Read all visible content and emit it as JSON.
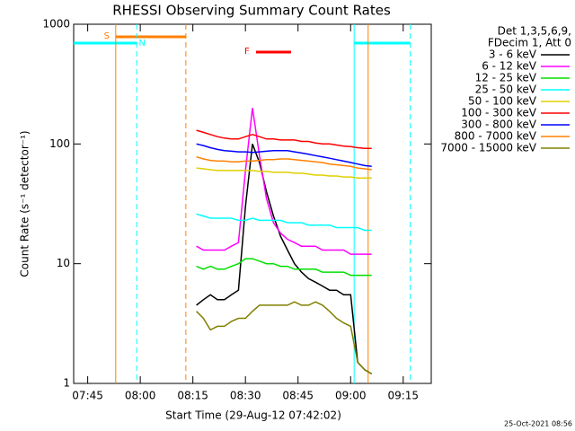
{
  "chart_data": {
    "type": "line",
    "title": "RHESSI Observing Summary Count Rates",
    "x_label": "Start Time (29-Aug-12 07:42:02)",
    "y_label": "Count Rate (s⁻¹ detector⁻¹)",
    "legend_header": [
      "Det 1,3,5,6,9,",
      "FDecim 1, Att 0"
    ],
    "footer": "25-Oct-2021 08:56",
    "log_y": true,
    "ylim": [
      1,
      1000
    ],
    "yticks": [
      1,
      10,
      100,
      1000
    ],
    "xlim": [
      "07:41",
      "09:23"
    ],
    "xticks": [
      "07:45",
      "08:00",
      "08:15",
      "08:30",
      "08:45",
      "09:00",
      "09:15"
    ],
    "x": [
      "08:16",
      "08:18",
      "08:20",
      "08:22",
      "08:24",
      "08:26",
      "08:28",
      "08:30",
      "08:32",
      "08:34",
      "08:36",
      "08:38",
      "08:40",
      "08:42",
      "08:44",
      "08:46",
      "08:48",
      "08:50",
      "08:52",
      "08:54",
      "08:56",
      "08:58",
      "09:00",
      "09:02",
      "09:04",
      "09:06"
    ],
    "series": [
      {
        "name": "3 - 6 keV",
        "color": "#000000",
        "values": [
          4.5,
          5,
          5.5,
          5,
          5,
          5.5,
          6,
          30,
          100,
          70,
          40,
          25,
          17,
          13,
          10,
          8.5,
          7.5,
          7,
          6.5,
          6,
          6,
          5.5,
          5.5,
          1.5,
          1.3,
          1.2
        ]
      },
      {
        "name": "6 - 12 keV",
        "color": "#ff00ff",
        "values": [
          14,
          13,
          13,
          13,
          13,
          14,
          15,
          60,
          200,
          80,
          35,
          22,
          18,
          16,
          15,
          14,
          14,
          14,
          13,
          13,
          13,
          13,
          12,
          12,
          12,
          12
        ]
      },
      {
        "name": "12 - 25 keV",
        "color": "#00e000",
        "values": [
          9.5,
          9,
          9.5,
          9,
          9,
          9.5,
          10,
          11,
          11,
          10.5,
          10,
          10,
          9.5,
          9.5,
          9,
          9,
          9,
          9,
          8.5,
          8.5,
          8.5,
          8.5,
          8,
          8,
          8,
          8
        ]
      },
      {
        "name": "25 - 50 keV",
        "color": "#00ffff",
        "values": [
          26,
          25,
          24,
          24,
          24,
          24,
          23,
          23,
          24,
          23,
          23,
          23,
          23,
          22,
          22,
          22,
          21,
          21,
          21,
          21,
          20,
          20,
          20,
          20,
          19,
          19
        ]
      },
      {
        "name": "50 - 100 keV",
        "color": "#e0d000",
        "values": [
          63,
          62,
          61,
          60,
          60,
          60,
          60,
          60,
          60,
          59,
          59,
          58,
          58,
          58,
          57,
          57,
          56,
          55,
          55,
          54,
          54,
          53,
          53,
          52,
          52,
          52
        ]
      },
      {
        "name": "100 - 300 keV",
        "color": "#ff0000",
        "values": [
          130,
          125,
          120,
          115,
          112,
          110,
          110,
          115,
          120,
          115,
          110,
          110,
          108,
          108,
          108,
          105,
          105,
          102,
          100,
          100,
          98,
          96,
          95,
          93,
          92,
          92
        ]
      },
      {
        "name": "300 - 800 keV",
        "color": "#0000ff",
        "values": [
          100,
          97,
          93,
          90,
          88,
          87,
          86,
          86,
          85,
          86,
          87,
          88,
          88,
          88,
          86,
          84,
          82,
          80,
          78,
          76,
          74,
          72,
          70,
          68,
          66,
          65
        ]
      },
      {
        "name": "800 - 7000 keV",
        "color": "#ff8000",
        "values": [
          78,
          75,
          73,
          72,
          72,
          71,
          71,
          72,
          72,
          73,
          74,
          74,
          75,
          75,
          74,
          73,
          72,
          71,
          70,
          68,
          67,
          66,
          65,
          63,
          62,
          61
        ]
      },
      {
        "name": "7000 - 15000 keV",
        "color": "#808000",
        "values": [
          4,
          3.5,
          2.8,
          3,
          3,
          3.3,
          3.5,
          3.5,
          4,
          4.5,
          4.5,
          4.5,
          4.5,
          4.5,
          4.8,
          4.5,
          4.5,
          4.8,
          4.5,
          4,
          3.5,
          3.2,
          3,
          1.5,
          1.3,
          1.2
        ]
      }
    ],
    "annotations": [
      {
        "text": "S",
        "start": "07:53",
        "end": "08:13",
        "color": "#ff8000"
      },
      {
        "text": "N",
        "start": "07:41",
        "end": "07:59",
        "color": "#00ffff"
      },
      {
        "start": "09:01",
        "end": "09:17",
        "color": "#00ffff"
      },
      {
        "text": "F",
        "start": "08:33",
        "end": "08:43",
        "color": "#ff0000"
      }
    ],
    "markers": [
      {
        "time": "07:53",
        "color": "#ff8000",
        "style": "solid"
      },
      {
        "time": "07:59",
        "color": "#00ffff",
        "style": "dashed"
      },
      {
        "time": "08:13",
        "color": "#ff8000",
        "style": "dashed"
      },
      {
        "time": "09:01",
        "color": "#00ffff",
        "style": "solid"
      },
      {
        "time": "09:05",
        "color": "#ff8000",
        "style": "solid"
      },
      {
        "time": "09:17",
        "color": "#00ffff",
        "style": "dashed"
      }
    ]
  }
}
